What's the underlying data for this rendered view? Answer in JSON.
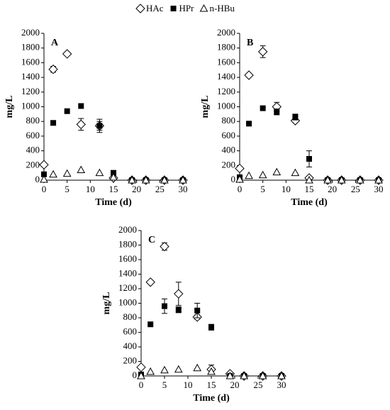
{
  "legend": [
    "HAc",
    "HPr",
    "n-HBu"
  ],
  "chart_data": [
    {
      "type": "scatter",
      "panel": "A",
      "x_label": "Time (d)",
      "y_label": "mg/L",
      "x": [
        0,
        2,
        5,
        8,
        12,
        15,
        19,
        22,
        26,
        30
      ],
      "xlim": [
        0,
        30
      ],
      "xticks": [
        0,
        5,
        10,
        15,
        20,
        25,
        30
      ],
      "ylim": [
        0,
        2000
      ],
      "yticks": [
        0,
        200,
        400,
        600,
        800,
        1000,
        1200,
        1400,
        1600,
        1800,
        2000
      ],
      "series": [
        {
          "marker": "diamond",
          "color": "#000000",
          "values": [
            210,
            1510,
            1720,
            760,
            740,
            30,
            0,
            0,
            0,
            0
          ],
          "errors": [
            null,
            40,
            null,
            80,
            90,
            null,
            null,
            null,
            null,
            null
          ]
        },
        {
          "marker": "square",
          "color": "#000000",
          "values": [
            80,
            780,
            940,
            1010,
            740,
            100,
            0,
            0,
            0,
            0
          ],
          "errors": [
            null,
            30,
            null,
            null,
            60,
            null,
            null,
            null,
            null,
            null
          ]
        },
        {
          "marker": "triangle",
          "color": "#000000",
          "values": [
            10,
            80,
            90,
            140,
            100,
            40,
            0,
            0,
            0,
            0
          ],
          "errors": [
            null,
            null,
            null,
            null,
            null,
            null,
            null,
            null,
            null,
            null
          ]
        }
      ]
    },
    {
      "type": "scatter",
      "panel": "B",
      "x_label": "Time (d)",
      "y_label": "mg/L",
      "x": [
        0,
        2,
        5,
        8,
        12,
        15,
        19,
        22,
        26,
        30
      ],
      "xlim": [
        0,
        30
      ],
      "xticks": [
        0,
        5,
        10,
        15,
        20,
        25,
        30
      ],
      "ylim": [
        0,
        2000
      ],
      "yticks": [
        0,
        200,
        400,
        600,
        800,
        1000,
        1200,
        1400,
        1600,
        1800,
        2000
      ],
      "series": [
        {
          "marker": "diamond",
          "color": "#000000",
          "values": [
            160,
            1430,
            1750,
            1000,
            810,
            30,
            0,
            0,
            0,
            0
          ],
          "errors": [
            null,
            null,
            80,
            60,
            null,
            null,
            null,
            null,
            null,
            null
          ]
        },
        {
          "marker": "square",
          "color": "#000000",
          "values": [
            40,
            770,
            980,
            930,
            860,
            290,
            0,
            0,
            0,
            0
          ],
          "errors": [
            null,
            null,
            null,
            40,
            40,
            110,
            null,
            null,
            null,
            null
          ]
        },
        {
          "marker": "triangle",
          "color": "#000000",
          "values": [
            10,
            60,
            70,
            110,
            100,
            0,
            0,
            0,
            0,
            0
          ],
          "errors": [
            null,
            null,
            null,
            null,
            null,
            null,
            null,
            null,
            null,
            null
          ]
        }
      ]
    },
    {
      "type": "scatter",
      "panel": "C",
      "x_label": "Time (d)",
      "y_label": "mg/L",
      "x": [
        0,
        2,
        5,
        8,
        12,
        15,
        19,
        22,
        26,
        30
      ],
      "xlim": [
        0,
        30
      ],
      "xticks": [
        0,
        5,
        10,
        15,
        20,
        25,
        30
      ],
      "ylim": [
        0,
        2000
      ],
      "yticks": [
        0,
        200,
        400,
        600,
        800,
        1000,
        1200,
        1400,
        1600,
        1800,
        2000
      ],
      "series": [
        {
          "marker": "diamond",
          "color": "#000000",
          "values": [
            120,
            1290,
            1780,
            1130,
            810,
            90,
            30,
            0,
            0,
            0
          ],
          "errors": [
            null,
            null,
            50,
            160,
            30,
            60,
            null,
            null,
            null,
            null
          ]
        },
        {
          "marker": "square",
          "color": "#000000",
          "values": [
            20,
            710,
            960,
            910,
            900,
            670,
            0,
            0,
            0,
            0
          ],
          "errors": [
            null,
            null,
            100,
            40,
            100,
            40,
            null,
            null,
            null,
            null
          ]
        },
        {
          "marker": "triangle",
          "color": "#000000",
          "values": [
            0,
            60,
            80,
            90,
            110,
            60,
            0,
            0,
            0,
            0
          ],
          "errors": [
            null,
            null,
            null,
            null,
            null,
            null,
            null,
            null,
            null,
            null
          ]
        }
      ]
    }
  ]
}
